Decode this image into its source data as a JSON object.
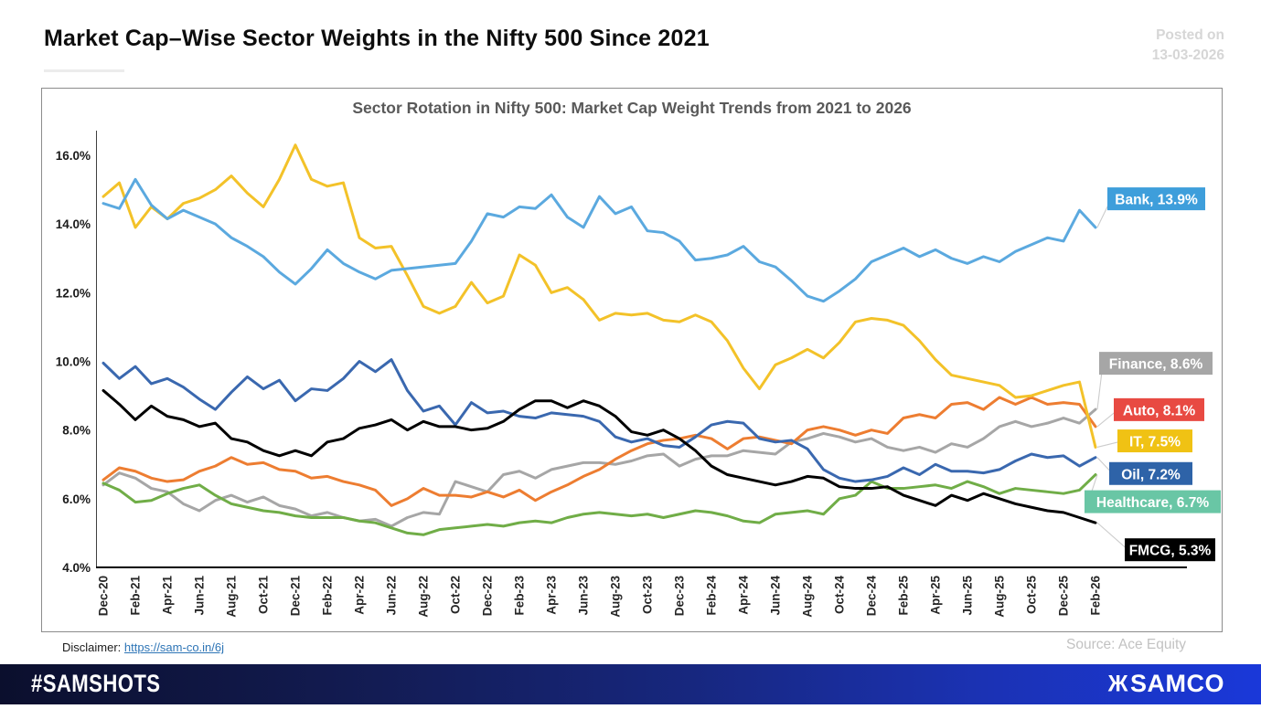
{
  "header": {
    "title": "Market Cap–Wise Sector Weights in the Nifty 500 Since 2021",
    "posted_on_line1": "Posted on",
    "posted_on_line2": "13-03-2026"
  },
  "chart_data": {
    "type": "line",
    "title": "Sector Rotation in Nifty 500: Market Cap Weight Trends from 2021 to 2026",
    "x_frequency": "monthly",
    "x_tick_labels": [
      "Dec-20",
      "Feb-21",
      "Apr-21",
      "Jun-21",
      "Aug-21",
      "Oct-21",
      "Dec-21",
      "Feb-22",
      "Apr-22",
      "Jun-22",
      "Aug-22",
      "Oct-22",
      "Dec-22",
      "Feb-23",
      "Apr-23",
      "Jun-23",
      "Aug-23",
      "Oct-23",
      "Dec-23",
      "Feb-24",
      "Apr-24",
      "Jun-24",
      "Aug-24",
      "Oct-24",
      "Dec-24",
      "Feb-25",
      "Apr-25",
      "Jun-25",
      "Aug-25",
      "Oct-25",
      "Dec-25",
      "Feb-26"
    ],
    "y_tick_labels": [
      "16.0%",
      "14.0%",
      "12.0%",
      "10.0%",
      "8.0%",
      "6.0%",
      "4.0%"
    ],
    "ylim": [
      4,
      16
    ],
    "grid": false,
    "legend_position": "right-end-labels",
    "series": [
      {
        "name": "Bank",
        "label": "Bank, 13.9%",
        "end_value": 13.9,
        "color": "#5ba9df",
        "label_bg": "#3e9edb",
        "values": [
          14.6,
          14.45,
          15.3,
          14.55,
          14.15,
          14.4,
          14.2,
          14.0,
          13.6,
          13.35,
          13.05,
          12.6,
          12.25,
          12.7,
          13.25,
          12.85,
          12.6,
          12.4,
          12.65,
          12.7,
          12.75,
          12.8,
          12.85,
          13.5,
          14.3,
          14.2,
          14.5,
          14.45,
          14.85,
          14.2,
          13.9,
          14.8,
          14.3,
          14.5,
          13.8,
          13.75,
          13.5,
          12.95,
          13.0,
          13.1,
          13.35,
          12.9,
          12.75,
          12.35,
          11.9,
          11.75,
          12.05,
          12.4,
          12.9,
          13.1,
          13.3,
          13.05,
          13.25,
          13.0,
          12.85,
          13.05,
          12.9,
          13.2,
          13.4,
          13.6,
          13.5,
          14.4,
          13.9
        ]
      },
      {
        "name": "Finance",
        "label": "Finance, 8.6%",
        "end_value": 8.6,
        "color": "#a6a6a6",
        "label_bg": "#a6a6a6",
        "values": [
          6.4,
          6.75,
          6.6,
          6.3,
          6.2,
          5.85,
          5.65,
          5.95,
          6.1,
          5.9,
          6.05,
          5.8,
          5.7,
          5.5,
          5.6,
          5.45,
          5.35,
          5.4,
          5.2,
          5.45,
          5.6,
          5.55,
          6.5,
          6.35,
          6.2,
          6.7,
          6.8,
          6.6,
          6.85,
          6.95,
          7.05,
          7.05,
          7.0,
          7.1,
          7.25,
          7.3,
          6.95,
          7.15,
          7.25,
          7.25,
          7.4,
          7.35,
          7.3,
          7.65,
          7.75,
          7.9,
          7.8,
          7.65,
          7.75,
          7.5,
          7.4,
          7.5,
          7.35,
          7.6,
          7.5,
          7.75,
          8.1,
          8.25,
          8.1,
          8.2,
          8.35,
          8.2,
          8.6
        ]
      },
      {
        "name": "Auto",
        "label": "Auto, 8.1%",
        "end_value": 8.1,
        "color": "#ed7d31",
        "label_bg": "#e84a42",
        "values": [
          6.55,
          6.9,
          6.8,
          6.6,
          6.5,
          6.55,
          6.8,
          6.95,
          7.2,
          7.0,
          7.05,
          6.85,
          6.8,
          6.6,
          6.65,
          6.5,
          6.4,
          6.25,
          5.8,
          6.0,
          6.3,
          6.1,
          6.1,
          6.05,
          6.2,
          6.05,
          6.25,
          5.95,
          6.2,
          6.4,
          6.65,
          6.85,
          7.15,
          7.4,
          7.6,
          7.7,
          7.75,
          7.85,
          7.75,
          7.45,
          7.75,
          7.8,
          7.7,
          7.6,
          8.0,
          8.1,
          8.0,
          7.85,
          8.0,
          7.9,
          8.35,
          8.45,
          8.35,
          8.75,
          8.8,
          8.6,
          8.95,
          8.75,
          8.95,
          8.75,
          8.8,
          8.75,
          8.1
        ]
      },
      {
        "name": "IT",
        "label": "IT, 7.5%",
        "end_value": 7.5,
        "color": "#f3c229",
        "label_bg": "#f0c214",
        "values": [
          14.8,
          15.2,
          13.9,
          14.5,
          14.15,
          14.6,
          14.75,
          15.0,
          15.4,
          14.9,
          14.5,
          15.3,
          16.3,
          15.3,
          15.1,
          15.2,
          13.6,
          13.3,
          13.35,
          12.5,
          11.6,
          11.4,
          11.6,
          12.3,
          11.7,
          11.9,
          13.1,
          12.8,
          12.0,
          12.15,
          11.8,
          11.2,
          11.4,
          11.35,
          11.4,
          11.2,
          11.15,
          11.35,
          11.15,
          10.6,
          9.8,
          9.2,
          9.9,
          10.1,
          10.35,
          10.1,
          10.55,
          11.15,
          11.25,
          11.2,
          11.05,
          10.6,
          10.05,
          9.6,
          9.5,
          9.4,
          9.3,
          8.95,
          9.0,
          9.15,
          9.3,
          9.4,
          7.5
        ]
      },
      {
        "name": "Oil",
        "label": "Oil, 7.2%",
        "end_value": 7.2,
        "color": "#3a68af",
        "label_bg": "#2e63a8",
        "values": [
          9.95,
          9.5,
          9.85,
          9.35,
          9.5,
          9.25,
          8.9,
          8.6,
          9.1,
          9.55,
          9.2,
          9.45,
          8.85,
          9.2,
          9.15,
          9.5,
          10.0,
          9.7,
          10.05,
          9.15,
          8.55,
          8.7,
          8.15,
          8.8,
          8.5,
          8.55,
          8.4,
          8.35,
          8.5,
          8.45,
          8.4,
          8.25,
          7.8,
          7.65,
          7.75,
          7.55,
          7.5,
          7.8,
          8.15,
          8.25,
          8.2,
          7.75,
          7.65,
          7.7,
          7.45,
          6.85,
          6.6,
          6.5,
          6.55,
          6.65,
          6.9,
          6.7,
          7.0,
          6.8,
          6.8,
          6.75,
          6.85,
          7.1,
          7.3,
          7.2,
          7.25,
          6.95,
          7.2
        ]
      },
      {
        "name": "Healthcare",
        "label": "Healthcare, 6.7%",
        "end_value": 6.7,
        "color": "#70ad47",
        "label_bg": "#69c6a5",
        "values": [
          6.45,
          6.25,
          5.9,
          5.95,
          6.15,
          6.3,
          6.4,
          6.1,
          5.85,
          5.75,
          5.65,
          5.6,
          5.5,
          5.45,
          5.45,
          5.45,
          5.35,
          5.3,
          5.15,
          5.0,
          4.95,
          5.1,
          5.15,
          5.2,
          5.25,
          5.2,
          5.3,
          5.35,
          5.3,
          5.45,
          5.55,
          5.6,
          5.55,
          5.5,
          5.55,
          5.45,
          5.55,
          5.65,
          5.6,
          5.5,
          5.35,
          5.3,
          5.55,
          5.6,
          5.65,
          5.55,
          6.0,
          6.1,
          6.5,
          6.3,
          6.3,
          6.35,
          6.4,
          6.3,
          6.5,
          6.35,
          6.15,
          6.3,
          6.25,
          6.2,
          6.15,
          6.25,
          6.7
        ]
      },
      {
        "name": "FMCG",
        "label": "FMCG, 5.3%",
        "end_value": 5.3,
        "color": "#000000",
        "label_bg": "#000000",
        "values": [
          9.15,
          8.75,
          8.3,
          8.7,
          8.4,
          8.3,
          8.1,
          8.2,
          7.75,
          7.65,
          7.4,
          7.25,
          7.4,
          7.25,
          7.65,
          7.75,
          8.05,
          8.15,
          8.3,
          8.0,
          8.25,
          8.1,
          8.1,
          8.0,
          8.05,
          8.25,
          8.6,
          8.85,
          8.85,
          8.65,
          8.85,
          8.7,
          8.4,
          7.95,
          7.85,
          8.0,
          7.75,
          7.4,
          6.95,
          6.7,
          6.6,
          6.5,
          6.4,
          6.5,
          6.65,
          6.6,
          6.35,
          6.3,
          6.3,
          6.35,
          6.1,
          5.95,
          5.8,
          6.1,
          5.95,
          6.15,
          6.0,
          5.85,
          5.75,
          5.65,
          5.6,
          5.45,
          5.3
        ]
      }
    ]
  },
  "footer": {
    "disclaimer_label": "Disclaimer: ",
    "disclaimer_url": "https://sam-co.in/6j",
    "source": "Source: Ace Equity",
    "hashtag": "#SAMSHOTS",
    "brand": "SAMCO",
    "brand_glyph": "Ж"
  }
}
